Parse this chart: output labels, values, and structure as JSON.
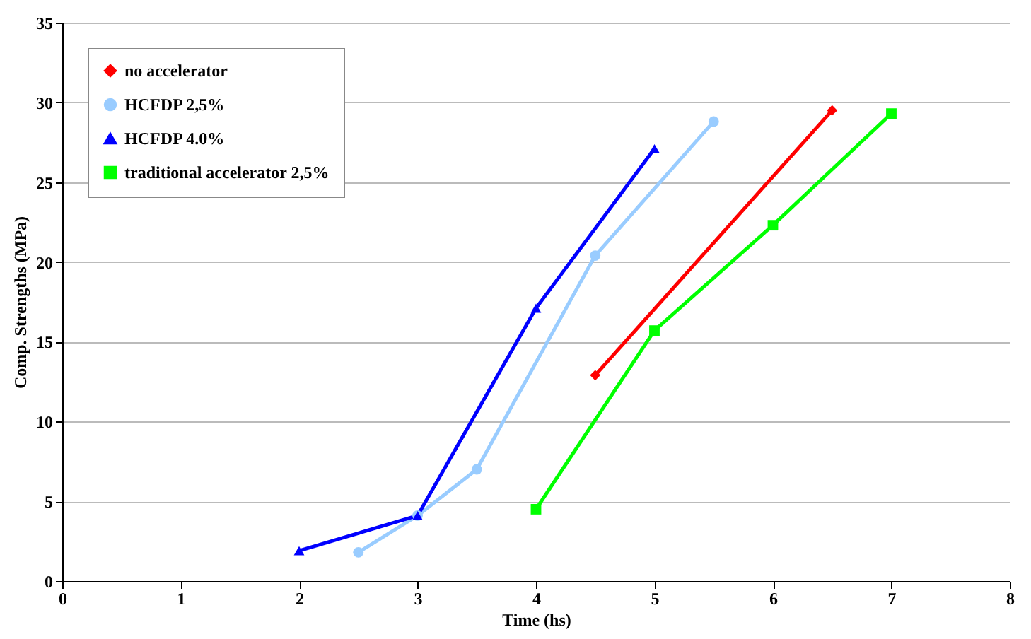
{
  "chart_data": {
    "type": "line",
    "xlabel": "Time (hs)",
    "ylabel": "Comp. Strengths (MPa)",
    "xlim": [
      0,
      8
    ],
    "xticks": [
      0,
      1,
      2,
      3,
      4,
      5,
      6,
      7,
      8
    ],
    "ylim": [
      0,
      35
    ],
    "yticks": [
      0,
      5,
      10,
      15,
      20,
      25,
      30,
      35
    ],
    "grid": "y",
    "legend": "top left",
    "line_style": "solid",
    "series": [
      {
        "name": "no accelerator",
        "color": "#ff0000",
        "marker": "diamond",
        "x": [
          4.5,
          6.5
        ],
        "values": [
          12.9,
          29.5
        ]
      },
      {
        "name": "HCFDP 2,5%",
        "color": "#99ccff",
        "marker": "circle",
        "x": [
          2.5,
          3,
          3.5,
          4.5,
          5.5
        ],
        "values": [
          1.8,
          4.1,
          7.0,
          20.4,
          28.8
        ]
      },
      {
        "name": "HCFDP 4.0%",
        "color": "#0000ff",
        "marker": "triangle",
        "x": [
          2,
          3,
          4,
          5
        ],
        "values": [
          1.9,
          4.1,
          17.1,
          27.1
        ]
      },
      {
        "name": "traditional accelerator 2,5%",
        "color": "#00ff00",
        "marker": "square",
        "x": [
          4,
          5,
          6,
          7
        ],
        "values": [
          4.5,
          15.7,
          22.3,
          29.3
        ]
      }
    ]
  }
}
